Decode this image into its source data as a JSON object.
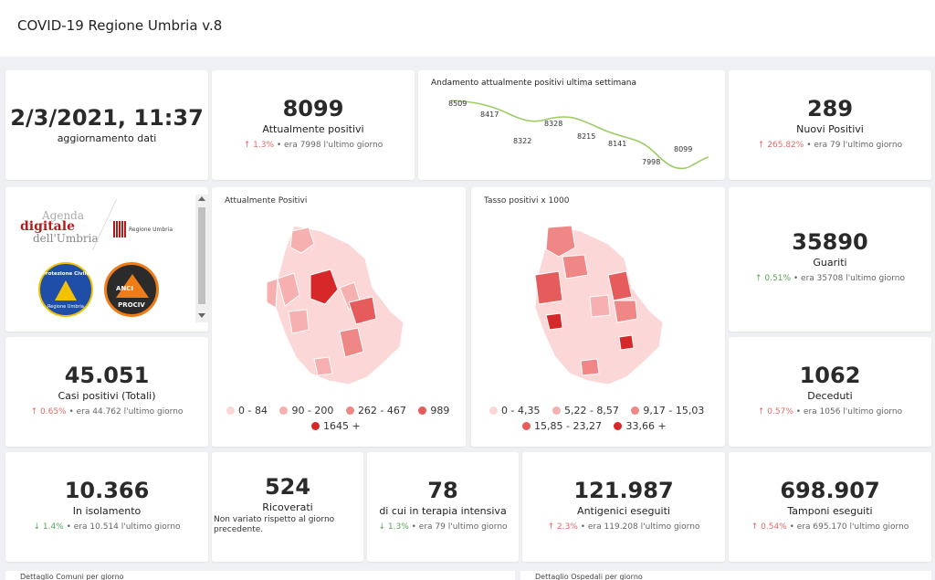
{
  "header": {
    "title": "COVID-19 Regione Umbria v.8"
  },
  "update": {
    "datetime": "2/3/2021, 11:37",
    "label": "aggiornamento dati"
  },
  "kpi_positivi": {
    "value": "8099",
    "label": "Attualmente positivi",
    "arrow": "↑",
    "pct": "1.3%",
    "rest": "• era 7998 l'ultimo giorno"
  },
  "trend": {
    "title": "Andamento attualmente positivi ultima settimana",
    "labels": [
      "8509",
      "8417",
      "8322",
      "8328",
      "8215",
      "8141",
      "7998",
      "8099"
    ]
  },
  "kpi_nuovi": {
    "value": "289",
    "label": "Nuovi Positivi",
    "arrow": "↑",
    "pct": "265.82%",
    "rest": "• era 79 l'ultimo giorno"
  },
  "logos": {
    "agenda_top": "Agenda",
    "agenda_mid": "digitale",
    "agenda_bot": "dell'Umbria",
    "regione": "Regione Umbria",
    "prot_top": "Protezione Civile",
    "prot_bot": "Regione Umbria",
    "anci_top": "ANCI",
    "anci_bot": "PROCIV"
  },
  "map1": {
    "title": "Attualmente Positivi",
    "legend": [
      {
        "label": "0 - 84",
        "color": "#fbd7d7"
      },
      {
        "label": "90 - 200",
        "color": "#f6b0b0"
      },
      {
        "label": "262 - 467",
        "color": "#ef8787"
      },
      {
        "label": "989",
        "color": "#e65c5c"
      },
      {
        "label": "1645 +",
        "color": "#d62828"
      }
    ]
  },
  "map2": {
    "title": "Tasso positivi x 1000",
    "legend": [
      {
        "label": "0 - 4,35",
        "color": "#fbd7d7"
      },
      {
        "label": "5,22 - 8,57",
        "color": "#f6b0b0"
      },
      {
        "label": "9,17 - 15,03",
        "color": "#ef8787"
      },
      {
        "label": "15,85 - 23,27",
        "color": "#e65c5c"
      },
      {
        "label": "33,66 +",
        "color": "#d62828"
      }
    ]
  },
  "kpi_guariti": {
    "value": "35890",
    "label": "Guariti",
    "arrow": "↑",
    "pct": "0.51%",
    "rest": "• era 35708 l'ultimo giorno"
  },
  "kpi_casi": {
    "value": "45.051",
    "label": "Casi positivi (Totali)",
    "arrow": "↑",
    "pct": "0.65%",
    "rest": "• era 44.762 l'ultimo giorno"
  },
  "kpi_deceduti": {
    "value": "1062",
    "label": "Deceduti",
    "arrow": "↑",
    "pct": "0.57%",
    "rest": "• era 1056 l'ultimo giorno"
  },
  "kpi_isolamento": {
    "value": "10.366",
    "label": "In isolamento",
    "arrow": "↓",
    "pct": "1.4%",
    "rest": "• era 10.514 l'ultimo giorno"
  },
  "kpi_ricoverati": {
    "value": "524",
    "label": "Ricoverati",
    "note": "Non variato rispetto al giorno precedente."
  },
  "kpi_terapia": {
    "value": "78",
    "label": "di cui in terapia intensiva",
    "arrow": "↓",
    "pct": "1.3%",
    "rest": "• era 79 l'ultimo giorno"
  },
  "kpi_antigenici": {
    "value": "121.987",
    "label": "Antigenici eseguiti",
    "arrow": "↑",
    "pct": "2.3%",
    "rest": "• era 119.208 l'ultimo giorno"
  },
  "kpi_tamponi": {
    "value": "698.907",
    "label": "Tamponi eseguiti",
    "arrow": "↑",
    "pct": "0.54%",
    "rest": "• era 695.170 l'ultimo giorno"
  },
  "bottom": {
    "left": "Dettaglio Comuni per giorno",
    "right": "Dettaglio Ospedali per giorno"
  }
}
